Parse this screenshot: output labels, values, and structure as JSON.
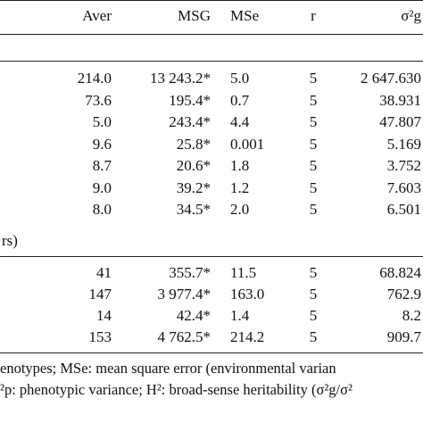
{
  "table": {
    "header": [
      "Aver",
      "MSG",
      "MSe",
      "r",
      "σ²g"
    ],
    "section_a_rows": [
      [
        "214.0",
        "13 243.2*",
        "5.0",
        "5",
        "2 647.630"
      ],
      [
        "73.6",
        "195.4*",
        "0.7",
        "5",
        "38.931"
      ],
      [
        "5.0",
        "243.4*",
        "4.4",
        "5",
        "47.807"
      ],
      [
        "9.6",
        "25.8*",
        "0.001",
        "5",
        "5.169"
      ],
      [
        "8.7",
        "20.6*",
        "1.8",
        "5",
        "3.752"
      ],
      [
        "9.0",
        "39.2*",
        "1.2",
        "5",
        "7.603"
      ],
      [
        "8.0",
        "34.5*",
        "2.0",
        "5",
        "6.501"
      ]
    ],
    "section_b_label": "rs)",
    "section_b_rows": [
      [
        "41",
        "355.7*",
        "11.5",
        "5",
        "68.824"
      ],
      [
        "147",
        "3 977.4*",
        "163.0",
        "5",
        "762.9"
      ],
      [
        "14",
        "42.4*",
        "1.4",
        "5",
        "8.2"
      ],
      [
        "153",
        "4 762.5*",
        "214.2",
        "5",
        "909.7"
      ]
    ]
  },
  "footnote": [
    "enotypes; MSe: mean square error (environmental varian",
    "²p: phenotypic variance; H²: broad-sense heritability (σ²g/σ²"
  ]
}
